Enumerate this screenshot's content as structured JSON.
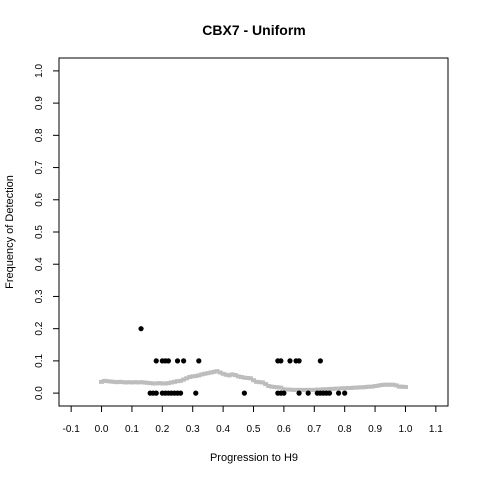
{
  "chart_data": {
    "type": "scatter",
    "title": "CBX7 - Uniform",
    "xlabel": "Progression to H9",
    "ylabel": "Frequency of Detection",
    "xlim": [
      -0.14,
      1.14
    ],
    "ylim": [
      -0.04,
      1.04
    ],
    "x_ticks": [
      "-0.1",
      "0.0",
      "0.1",
      "0.2",
      "0.3",
      "0.4",
      "0.5",
      "0.6",
      "0.7",
      "0.8",
      "0.9",
      "1.0",
      "1.1"
    ],
    "y_ticks": [
      "0.0",
      "0.1",
      "0.2",
      "0.3",
      "0.4",
      "0.5",
      "0.6",
      "0.7",
      "0.8",
      "0.9",
      "1.0"
    ],
    "grid": false,
    "colors": {
      "points": "#000000",
      "smooth": "#bdbdbd"
    },
    "series": [
      {
        "kind": "points",
        "points": [
          [
            0.13,
            0.2
          ],
          [
            0.16,
            0.0
          ],
          [
            0.17,
            0.0
          ],
          [
            0.18,
            0.0
          ],
          [
            0.18,
            0.1
          ],
          [
            0.2,
            0.1
          ],
          [
            0.21,
            0.1
          ],
          [
            0.22,
            0.1
          ],
          [
            0.2,
            0.0
          ],
          [
            0.21,
            0.0
          ],
          [
            0.22,
            0.0
          ],
          [
            0.23,
            0.0
          ],
          [
            0.24,
            0.0
          ],
          [
            0.25,
            0.0
          ],
          [
            0.26,
            0.0
          ],
          [
            0.25,
            0.1
          ],
          [
            0.27,
            0.1
          ],
          [
            0.32,
            0.1
          ],
          [
            0.31,
            0.0
          ],
          [
            0.47,
            0.0
          ],
          [
            0.58,
            0.1
          ],
          [
            0.59,
            0.1
          ],
          [
            0.62,
            0.1
          ],
          [
            0.64,
            0.1
          ],
          [
            0.65,
            0.1
          ],
          [
            0.58,
            0.0
          ],
          [
            0.59,
            0.0
          ],
          [
            0.6,
            0.0
          ],
          [
            0.65,
            0.0
          ],
          [
            0.68,
            0.0
          ],
          [
            0.71,
            0.0
          ],
          [
            0.72,
            0.0
          ],
          [
            0.73,
            0.0
          ],
          [
            0.74,
            0.0
          ],
          [
            0.75,
            0.0
          ],
          [
            0.72,
            0.1
          ],
          [
            0.78,
            0.0
          ],
          [
            0.8,
            0.0
          ]
        ]
      },
      {
        "kind": "smooth",
        "points": [
          [
            0.0,
            0.035
          ],
          [
            0.01,
            0.038
          ],
          [
            0.02,
            0.037
          ],
          [
            0.03,
            0.036
          ],
          [
            0.04,
            0.035
          ],
          [
            0.05,
            0.034
          ],
          [
            0.06,
            0.035
          ],
          [
            0.07,
            0.034
          ],
          [
            0.08,
            0.033
          ],
          [
            0.09,
            0.034
          ],
          [
            0.1,
            0.033
          ],
          [
            0.11,
            0.034
          ],
          [
            0.12,
            0.033
          ],
          [
            0.13,
            0.034
          ],
          [
            0.14,
            0.033
          ],
          [
            0.15,
            0.032
          ],
          [
            0.16,
            0.031
          ],
          [
            0.17,
            0.03
          ],
          [
            0.18,
            0.03
          ],
          [
            0.19,
            0.031
          ],
          [
            0.2,
            0.03
          ],
          [
            0.21,
            0.03
          ],
          [
            0.22,
            0.031
          ],
          [
            0.23,
            0.033
          ],
          [
            0.24,
            0.035
          ],
          [
            0.25,
            0.037
          ],
          [
            0.26,
            0.038
          ],
          [
            0.27,
            0.042
          ],
          [
            0.28,
            0.046
          ],
          [
            0.29,
            0.05
          ],
          [
            0.3,
            0.052
          ],
          [
            0.31,
            0.053
          ],
          [
            0.32,
            0.055
          ],
          [
            0.33,
            0.058
          ],
          [
            0.34,
            0.06
          ],
          [
            0.35,
            0.062
          ],
          [
            0.36,
            0.064
          ],
          [
            0.37,
            0.066
          ],
          [
            0.38,
            0.068
          ],
          [
            0.39,
            0.064
          ],
          [
            0.4,
            0.06
          ],
          [
            0.41,
            0.057
          ],
          [
            0.42,
            0.055
          ],
          [
            0.43,
            0.058
          ],
          [
            0.44,
            0.056
          ],
          [
            0.45,
            0.052
          ],
          [
            0.46,
            0.05
          ],
          [
            0.47,
            0.048
          ],
          [
            0.48,
            0.047
          ],
          [
            0.49,
            0.046
          ],
          [
            0.5,
            0.04
          ],
          [
            0.51,
            0.035
          ],
          [
            0.52,
            0.034
          ],
          [
            0.53,
            0.033
          ],
          [
            0.54,
            0.028
          ],
          [
            0.55,
            0.022
          ],
          [
            0.56,
            0.02
          ],
          [
            0.57,
            0.019
          ],
          [
            0.58,
            0.018
          ],
          [
            0.59,
            0.017
          ],
          [
            0.6,
            0.012
          ],
          [
            0.61,
            0.011
          ],
          [
            0.62,
            0.011
          ],
          [
            0.63,
            0.01
          ],
          [
            0.64,
            0.01
          ],
          [
            0.65,
            0.01
          ],
          [
            0.66,
            0.01
          ],
          [
            0.67,
            0.01
          ],
          [
            0.68,
            0.01
          ],
          [
            0.69,
            0.01
          ],
          [
            0.7,
            0.01
          ],
          [
            0.71,
            0.011
          ],
          [
            0.72,
            0.011
          ],
          [
            0.73,
            0.012
          ],
          [
            0.74,
            0.012
          ],
          [
            0.75,
            0.013
          ],
          [
            0.76,
            0.013
          ],
          [
            0.77,
            0.014
          ],
          [
            0.78,
            0.014
          ],
          [
            0.79,
            0.015
          ],
          [
            0.8,
            0.015
          ],
          [
            0.81,
            0.016
          ],
          [
            0.82,
            0.016
          ],
          [
            0.83,
            0.017
          ],
          [
            0.84,
            0.017
          ],
          [
            0.85,
            0.018
          ],
          [
            0.86,
            0.018
          ],
          [
            0.87,
            0.019
          ],
          [
            0.88,
            0.02
          ],
          [
            0.89,
            0.02
          ],
          [
            0.9,
            0.022
          ],
          [
            0.91,
            0.023
          ],
          [
            0.92,
            0.025
          ],
          [
            0.93,
            0.026
          ],
          [
            0.94,
            0.026
          ],
          [
            0.95,
            0.026
          ],
          [
            0.96,
            0.026
          ],
          [
            0.97,
            0.024
          ],
          [
            0.98,
            0.02
          ],
          [
            0.99,
            0.02
          ],
          [
            1.0,
            0.019
          ]
        ]
      }
    ]
  }
}
